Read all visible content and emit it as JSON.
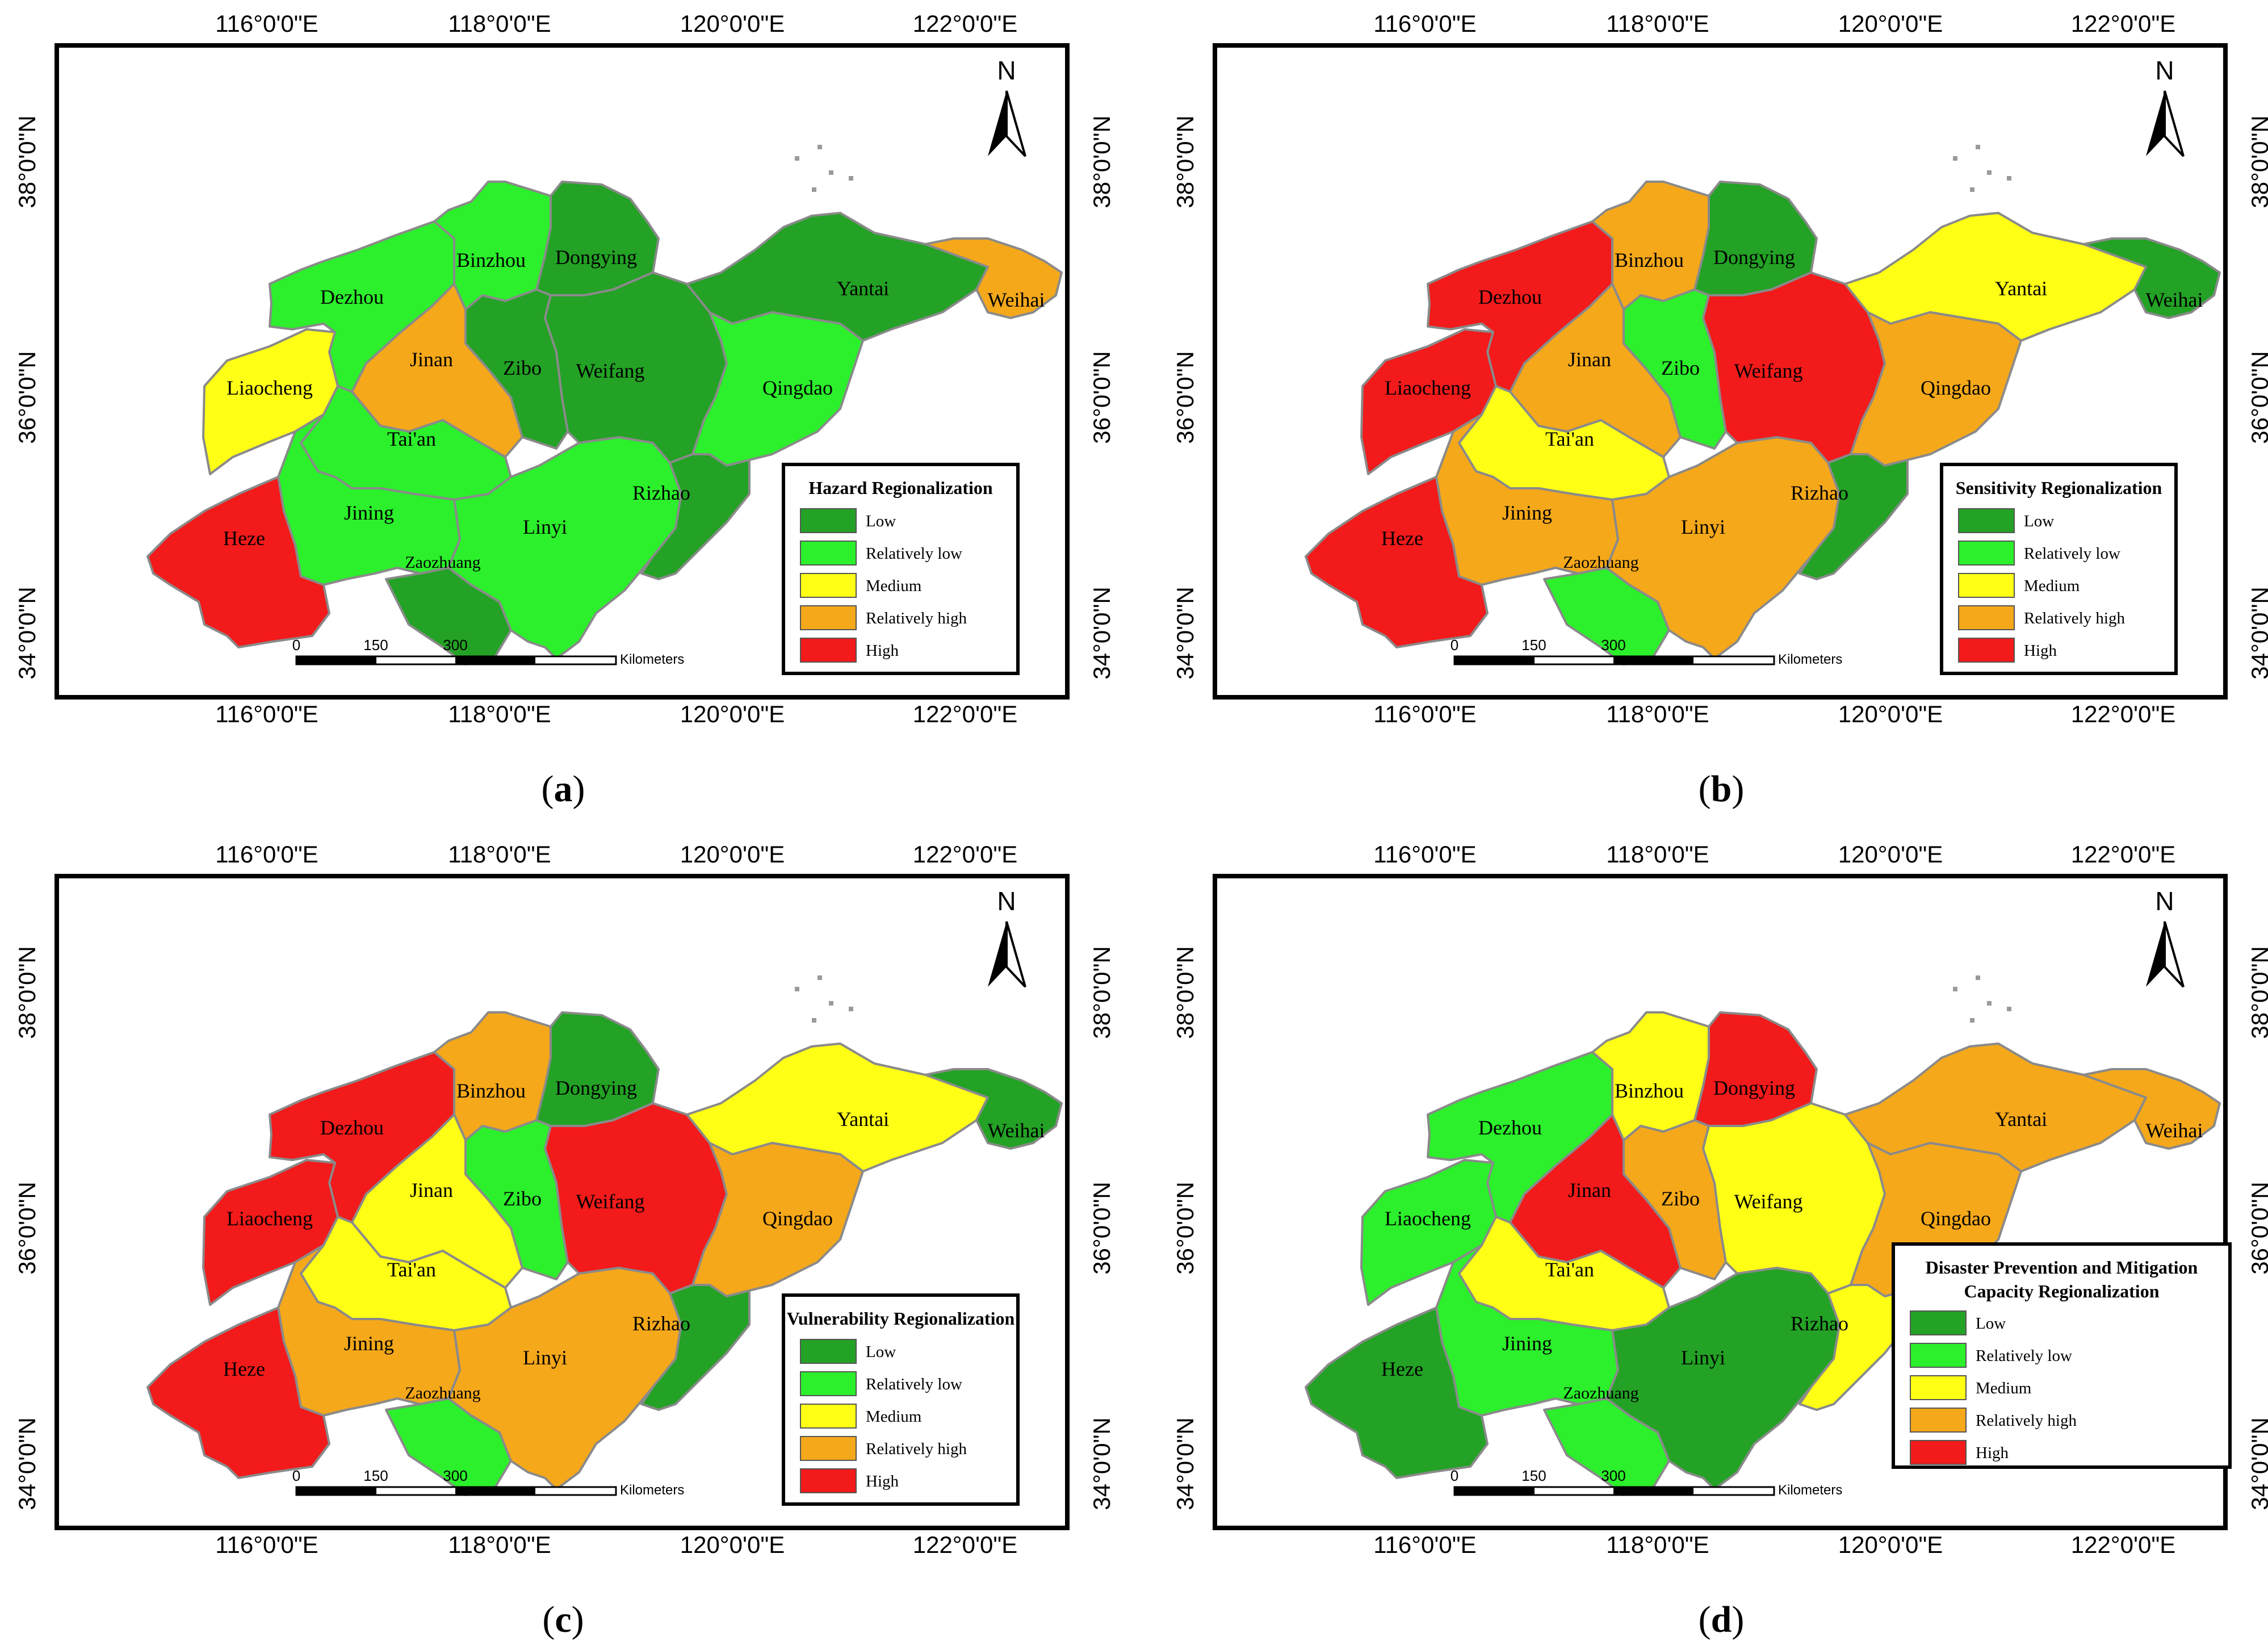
{
  "figure": {
    "legend_classes": [
      {
        "label": "Low",
        "color": "#23a225"
      },
      {
        "label": "Relatively low",
        "color": "#2bf02b"
      },
      {
        "label": "Medium",
        "color": "#ffff16"
      },
      {
        "label": "Relatively high",
        "color": "#f5a81a"
      },
      {
        "label": "High",
        "color": "#f21a1a"
      }
    ],
    "cities": [
      "Dezhou",
      "Binzhou",
      "Dongying",
      "Liaocheng",
      "Jinan",
      "Zibo",
      "Weifang",
      "Yantai",
      "Weihai",
      "Qingdao",
      "Tai'an",
      "Jining",
      "Heze",
      "Zaozhuang",
      "Linyi",
      "Rizhao"
    ],
    "axes": {
      "lon_labels": [
        "116°0'0\"E",
        "118°0'0\"E",
        "120°0'0\"E",
        "122°0'0\"E"
      ],
      "lat_labels": [
        "38°0'0\"N",
        "36°0'0\"N",
        "34°0'0\"N"
      ]
    },
    "scale_bar": {
      "ticks": [
        "0",
        "150",
        "300"
      ],
      "unit": "Kilometers"
    },
    "north_label": "N"
  },
  "panels": [
    {
      "letter": "a",
      "legend_title": [
        "Hazard Regionalization"
      ],
      "classes": [
        1,
        1,
        0,
        2,
        3,
        0,
        0,
        0,
        3,
        1,
        1,
        1,
        4,
        0,
        1,
        0
      ]
    },
    {
      "letter": "b",
      "legend_title": [
        "Sensitivity Regionalization"
      ],
      "classes": [
        4,
        3,
        0,
        4,
        3,
        1,
        4,
        2,
        0,
        3,
        2,
        3,
        4,
        1,
        3,
        0
      ]
    },
    {
      "letter": "c",
      "legend_title": [
        "Vulnerability Regionalization"
      ],
      "classes": [
        4,
        3,
        0,
        4,
        2,
        1,
        4,
        2,
        0,
        3,
        2,
        3,
        4,
        1,
        3,
        0
      ]
    },
    {
      "letter": "d",
      "legend_title": [
        "Disaster Prevention and Mitigation",
        "Capacity Regionalization"
      ],
      "classes": [
        1,
        2,
        4,
        1,
        4,
        3,
        2,
        3,
        3,
        3,
        2,
        1,
        0,
        1,
        0,
        2
      ]
    }
  ]
}
